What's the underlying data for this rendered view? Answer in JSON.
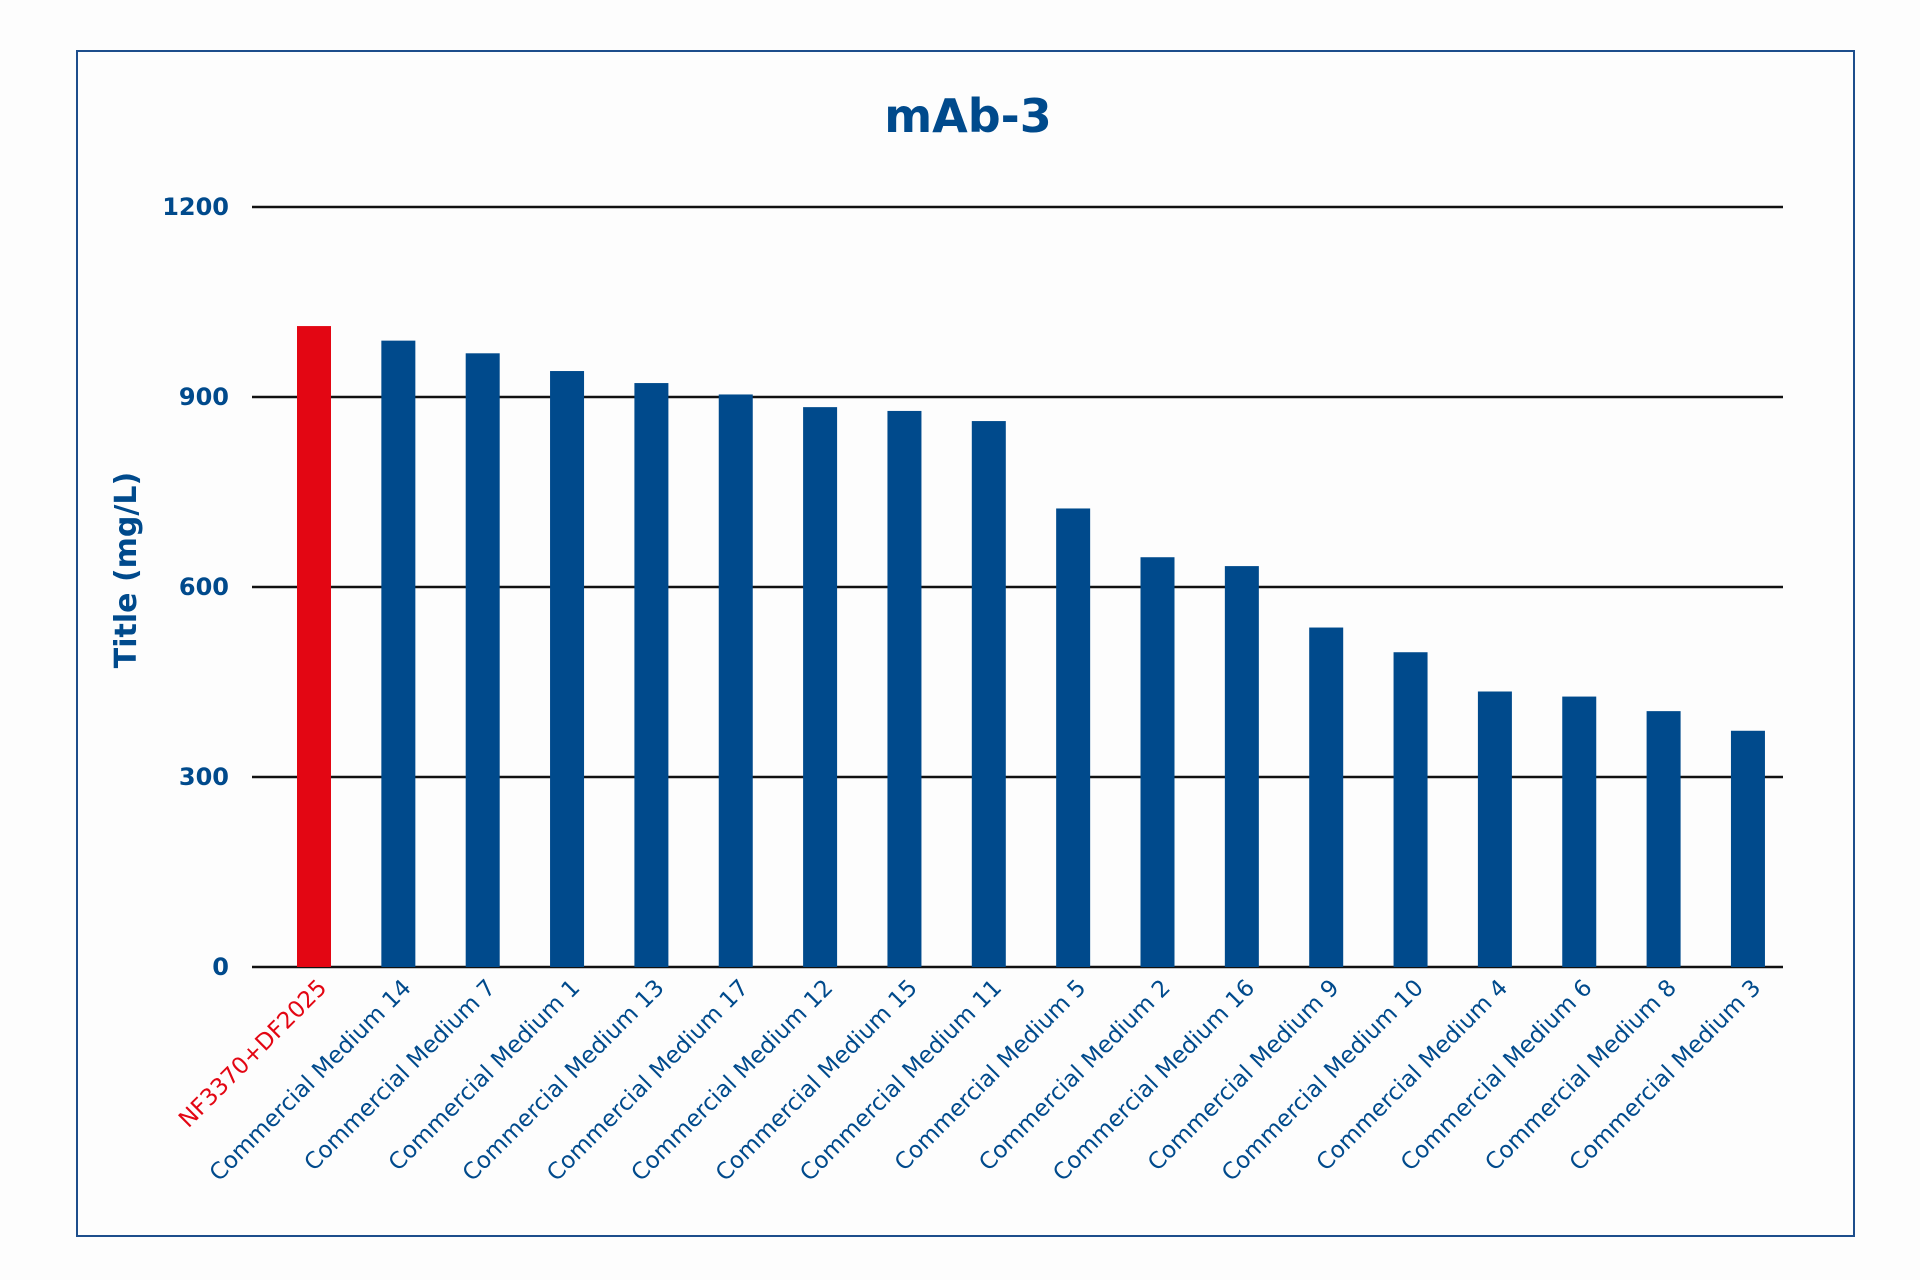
{
  "chart_data": {
    "type": "bar",
    "title": "mAb-3",
    "xlabel": "",
    "ylabel": "Title (mg/L)",
    "ylim": [
      0,
      1200
    ],
    "yticks": [
      0,
      300,
      600,
      900,
      1200
    ],
    "grid": true,
    "categories": [
      "NF3370+DF2025",
      "Commercial Medium 14",
      "Commercial Medium 7",
      "Commercial Medium 1",
      "Commercial Medium 13",
      "Commercial Medium 17",
      "Commercial Medium 12",
      "Commercial Medium 15",
      "Commercial Medium 11",
      "Commercial Medium 5",
      "Commercial Medium 2",
      "Commercial Medium 16",
      "Commercial Medium 9",
      "Commercial Medium 10",
      "Commercial Medium 4",
      "Commercial Medium 6",
      "Commercial Medium 8",
      "Commercial Medium 3"
    ],
    "values": [
      1012,
      989,
      969,
      941,
      922,
      904,
      884,
      878,
      862,
      724,
      647,
      633,
      536,
      497,
      435,
      427,
      404,
      373
    ],
    "colors": {
      "highlight": "#e30613",
      "default": "#004a8c",
      "text": "#004a8c",
      "grid": "#111111",
      "frame": "#1d4e8c"
    },
    "highlight_index": 0
  }
}
